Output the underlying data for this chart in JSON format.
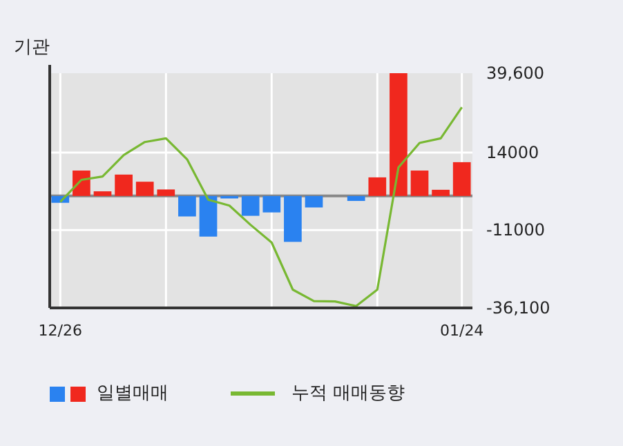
{
  "chart_data": {
    "type": "bar",
    "title": "기관",
    "categories": [
      "12/26",
      null,
      null,
      null,
      null,
      null,
      null,
      null,
      null,
      null,
      null,
      null,
      null,
      null,
      null,
      null,
      null,
      null,
      null,
      "01/24"
    ],
    "series": [
      {
        "name": "일별매매",
        "colors": [
          "#2a82f0",
          "#f0281e",
          "#f0281e",
          "#f0281e",
          "#f0281e",
          "#f0281e",
          "#2a82f0",
          "#2a82f0",
          "#2a82f0",
          "#2a82f0",
          "#2a82f0",
          "#2a82f0",
          "#2a82f0",
          "#2a82f0",
          "#2a82f0",
          "#f0281e",
          "#f0281e",
          "#f0281e",
          "#f0281e",
          "#f0281e"
        ],
        "values": [
          -2200,
          8200,
          1500,
          6900,
          4600,
          2100,
          -6600,
          -13100,
          -800,
          -6400,
          -5300,
          -14800,
          -3700,
          0,
          -1600,
          6000,
          39600,
          8200,
          2000,
          10900
        ]
      },
      {
        "name": "누적 매매동향",
        "type": "line",
        "color": "#78b832",
        "values": [
          -1900,
          5200,
          6300,
          13200,
          17400,
          18600,
          11800,
          -1200,
          -3100,
          -9300,
          -15000,
          -30200,
          -33900,
          -34000,
          -35500,
          -30200,
          9200,
          17100,
          18600,
          28600
        ]
      }
    ],
    "ylim": [
      -36100,
      39600
    ],
    "yticks": [
      {
        "value": 39600,
        "label": "39,600"
      },
      14000,
      -11000,
      {
        "value": -36100,
        "label": "-36,100"
      }
    ],
    "grid": true,
    "legend": "bottom"
  }
}
